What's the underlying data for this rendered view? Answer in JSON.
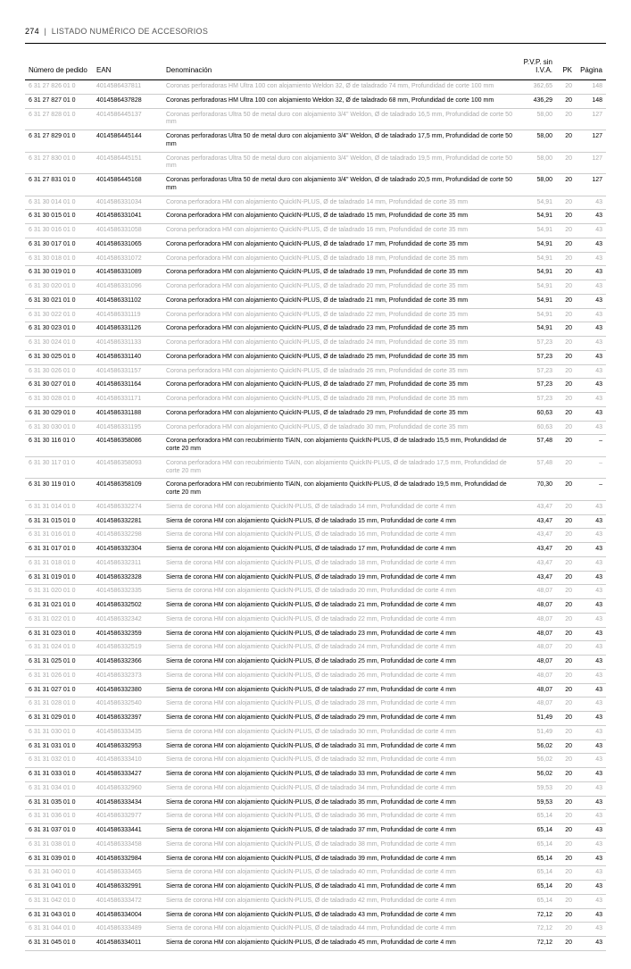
{
  "header": {
    "page_num": "274",
    "title": "LISTADO NUMÉRICO DE ACCESORIOS"
  },
  "columns": {
    "num": "Número de pedido",
    "ean": "EAN",
    "desc": "Denominación",
    "pvp": "P.V.P. sin I.V.A.",
    "pk": "PK",
    "pg": "Página"
  },
  "rows": [
    {
      "grey": 1,
      "num": "6 31 27 826 01 0",
      "ean": "4014586437811",
      "desc": "Coronas perforadoras HM Ultra 100 con alojamiento Weldon 32, Ø de taladrado 74 mm, Profundidad de corte 100 mm",
      "pvp": "362,65",
      "pk": "20",
      "pg": "148"
    },
    {
      "grey": 0,
      "num": "6 31 27 827 01 0",
      "ean": "4014586437828",
      "desc": "Coronas perforadoras HM Ultra 100 con alojamiento Weldon 32, Ø de taladrado 68 mm, Profundidad de corte 100 mm",
      "pvp": "436,29",
      "pk": "20",
      "pg": "148"
    },
    {
      "grey": 1,
      "num": "6 31 27 828 01 0",
      "ean": "4014586445137",
      "desc": "Coronas perforadoras Ultra 50 de metal duro con alojamiento 3/4\" Weldon, Ø de taladrado 16,5 mm, Profundidad de corte 50 mm",
      "pvp": "58,00",
      "pk": "20",
      "pg": "127"
    },
    {
      "grey": 0,
      "num": "6 31 27 829 01 0",
      "ean": "4014586445144",
      "desc": "Coronas perforadoras Ultra 50 de metal duro con alojamiento 3/4\" Weldon, Ø de taladrado 17,5 mm, Profundidad de corte 50 mm",
      "pvp": "58,00",
      "pk": "20",
      "pg": "127"
    },
    {
      "grey": 1,
      "num": "6 31 27 830 01 0",
      "ean": "4014586445151",
      "desc": "Coronas perforadoras Ultra 50 de metal duro con alojamiento 3/4\" Weldon, Ø de taladrado 19,5 mm, Profundidad de corte 50 mm",
      "pvp": "58,00",
      "pk": "20",
      "pg": "127"
    },
    {
      "grey": 0,
      "num": "6 31 27 831 01 0",
      "ean": "4014586445168",
      "desc": "Coronas perforadoras Ultra 50 de metal duro con alojamiento 3/4\" Weldon, Ø de taladrado 20,5 mm, Profundidad de corte 50 mm",
      "pvp": "58,00",
      "pk": "20",
      "pg": "127"
    },
    {
      "grey": 1,
      "num": "6 31 30 014 01 0",
      "ean": "4014586331034",
      "desc": "Corona perforadora HM con alojamiento QuickIN-PLUS, Ø de taladrado 14 mm, Profundidad de corte 35 mm",
      "pvp": "54,91",
      "pk": "20",
      "pg": "43"
    },
    {
      "grey": 0,
      "num": "6 31 30 015 01 0",
      "ean": "4014586331041",
      "desc": "Corona perforadora HM con alojamiento QuickIN-PLUS, Ø de taladrado 15 mm, Profundidad de corte 35 mm",
      "pvp": "54,91",
      "pk": "20",
      "pg": "43"
    },
    {
      "grey": 1,
      "num": "6 31 30 016 01 0",
      "ean": "4014586331058",
      "desc": "Corona perforadora HM con alojamiento QuickIN-PLUS, Ø de taladrado 16 mm, Profundidad de corte 35 mm",
      "pvp": "54,91",
      "pk": "20",
      "pg": "43"
    },
    {
      "grey": 0,
      "num": "6 31 30 017 01 0",
      "ean": "4014586331065",
      "desc": "Corona perforadora HM con alojamiento QuickIN-PLUS, Ø de taladrado 17 mm, Profundidad de corte 35 mm",
      "pvp": "54,91",
      "pk": "20",
      "pg": "43"
    },
    {
      "grey": 1,
      "num": "6 31 30 018 01 0",
      "ean": "4014586331072",
      "desc": "Corona perforadora HM con alojamiento QuickIN-PLUS, Ø de taladrado 18 mm, Profundidad de corte 35 mm",
      "pvp": "54,91",
      "pk": "20",
      "pg": "43"
    },
    {
      "grey": 0,
      "num": "6 31 30 019 01 0",
      "ean": "4014586331089",
      "desc": "Corona perforadora HM con alojamiento QuickIN-PLUS, Ø de taladrado 19 mm, Profundidad de corte 35 mm",
      "pvp": "54,91",
      "pk": "20",
      "pg": "43"
    },
    {
      "grey": 1,
      "num": "6 31 30 020 01 0",
      "ean": "4014586331096",
      "desc": "Corona perforadora HM con alojamiento QuickIN-PLUS, Ø de taladrado 20 mm, Profundidad de corte 35 mm",
      "pvp": "54,91",
      "pk": "20",
      "pg": "43"
    },
    {
      "grey": 0,
      "num": "6 31 30 021 01 0",
      "ean": "4014586331102",
      "desc": "Corona perforadora HM con alojamiento QuickIN-PLUS, Ø de taladrado 21 mm, Profundidad de corte 35 mm",
      "pvp": "54,91",
      "pk": "20",
      "pg": "43"
    },
    {
      "grey": 1,
      "num": "6 31 30 022 01 0",
      "ean": "4014586331119",
      "desc": "Corona perforadora HM con alojamiento QuickIN-PLUS, Ø de taladrado 22 mm, Profundidad de corte 35 mm",
      "pvp": "54,91",
      "pk": "20",
      "pg": "43"
    },
    {
      "grey": 0,
      "num": "6 31 30 023 01 0",
      "ean": "4014586331126",
      "desc": "Corona perforadora HM con alojamiento QuickIN-PLUS, Ø de taladrado 23 mm, Profundidad de corte 35 mm",
      "pvp": "54,91",
      "pk": "20",
      "pg": "43"
    },
    {
      "grey": 1,
      "num": "6 31 30 024 01 0",
      "ean": "4014586331133",
      "desc": "Corona perforadora HM con alojamiento QuickIN-PLUS, Ø de taladrado 24 mm, Profundidad de corte 35 mm",
      "pvp": "57,23",
      "pk": "20",
      "pg": "43"
    },
    {
      "grey": 0,
      "num": "6 31 30 025 01 0",
      "ean": "4014586331140",
      "desc": "Corona perforadora HM con alojamiento QuickIN-PLUS, Ø de taladrado 25 mm, Profundidad de corte 35 mm",
      "pvp": "57,23",
      "pk": "20",
      "pg": "43"
    },
    {
      "grey": 1,
      "num": "6 31 30 026 01 0",
      "ean": "4014586331157",
      "desc": "Corona perforadora HM con alojamiento QuickIN-PLUS, Ø de taladrado 26 mm, Profundidad de corte 35 mm",
      "pvp": "57,23",
      "pk": "20",
      "pg": "43"
    },
    {
      "grey": 0,
      "num": "6 31 30 027 01 0",
      "ean": "4014586331164",
      "desc": "Corona perforadora HM con alojamiento QuickIN-PLUS, Ø de taladrado 27 mm, Profundidad de corte 35 mm",
      "pvp": "57,23",
      "pk": "20",
      "pg": "43"
    },
    {
      "grey": 1,
      "num": "6 31 30 028 01 0",
      "ean": "4014586331171",
      "desc": "Corona perforadora HM con alojamiento QuickIN-PLUS, Ø de taladrado 28 mm, Profundidad de corte 35 mm",
      "pvp": "57,23",
      "pk": "20",
      "pg": "43"
    },
    {
      "grey": 0,
      "num": "6 31 30 029 01 0",
      "ean": "4014586331188",
      "desc": "Corona perforadora HM con alojamiento QuickIN-PLUS, Ø de taladrado 29 mm, Profundidad de corte 35 mm",
      "pvp": "60,63",
      "pk": "20",
      "pg": "43"
    },
    {
      "grey": 1,
      "num": "6 31 30 030 01 0",
      "ean": "4014586331195",
      "desc": "Corona perforadora HM con alojamiento QuickIN-PLUS, Ø de taladrado 30 mm, Profundidad de corte 35 mm",
      "pvp": "60,63",
      "pk": "20",
      "pg": "43"
    },
    {
      "grey": 0,
      "num": "6 31 30 116 01 0",
      "ean": "4014586358086",
      "desc": "Corona perforadora HM con recubrimiento TiAIN, con alojamiento QuickIN-PLUS, Ø de taladrado 15,5 mm, Profundidad de corte 20 mm",
      "pvp": "57,48",
      "pk": "20",
      "pg": "–"
    },
    {
      "grey": 1,
      "num": "6 31 30 117 01 0",
      "ean": "4014586358093",
      "desc": "Corona perforadora HM con recubrimiento TiAIN, con alojamiento QuickIN-PLUS, Ø de taladrado 17,5 mm, Profundidad de corte 20 mm",
      "pvp": "57,48",
      "pk": "20",
      "pg": "–"
    },
    {
      "grey": 0,
      "num": "6 31 30 119 01 0",
      "ean": "4014586358109",
      "desc": "Corona perforadora HM con recubrimiento TiAIN, con alojamiento QuickIN-PLUS, Ø de taladrado 19,5 mm, Profundidad de corte 20 mm",
      "pvp": "70,30",
      "pk": "20",
      "pg": "–"
    },
    {
      "grey": 1,
      "num": "6 31 31 014 01 0",
      "ean": "4014586332274",
      "desc": "Sierra de corona HM con alojamiento QuickIN-PLUS, Ø de taladrado 14 mm, Profundidad de corte 4 mm",
      "pvp": "43,47",
      "pk": "20",
      "pg": "43"
    },
    {
      "grey": 0,
      "num": "6 31 31 015 01 0",
      "ean": "4014586332281",
      "desc": "Sierra de corona HM con alojamiento QuickIN-PLUS, Ø de taladrado 15 mm, Profundidad de corte 4 mm",
      "pvp": "43,47",
      "pk": "20",
      "pg": "43"
    },
    {
      "grey": 1,
      "num": "6 31 31 016 01 0",
      "ean": "4014586332298",
      "desc": "Sierra de corona HM con alojamiento QuickIN-PLUS, Ø de taladrado 16 mm, Profundidad de corte 4 mm",
      "pvp": "43,47",
      "pk": "20",
      "pg": "43"
    },
    {
      "grey": 0,
      "num": "6 31 31 017 01 0",
      "ean": "4014586332304",
      "desc": "Sierra de corona HM con alojamiento QuickIN-PLUS, Ø de taladrado 17 mm, Profundidad de corte 4 mm",
      "pvp": "43,47",
      "pk": "20",
      "pg": "43"
    },
    {
      "grey": 1,
      "num": "6 31 31 018 01 0",
      "ean": "4014586332311",
      "desc": "Sierra de corona HM con alojamiento QuickIN-PLUS, Ø de taladrado 18 mm, Profundidad de corte 4 mm",
      "pvp": "43,47",
      "pk": "20",
      "pg": "43"
    },
    {
      "grey": 0,
      "num": "6 31 31 019 01 0",
      "ean": "4014586332328",
      "desc": "Sierra de corona HM con alojamiento QuickIN-PLUS, Ø de taladrado 19 mm, Profundidad de corte 4 mm",
      "pvp": "43,47",
      "pk": "20",
      "pg": "43"
    },
    {
      "grey": 1,
      "num": "6 31 31 020 01 0",
      "ean": "4014586332335",
      "desc": "Sierra de corona HM con alojamiento QuickIN-PLUS, Ø de taladrado 20 mm, Profundidad de corte 4 mm",
      "pvp": "48,07",
      "pk": "20",
      "pg": "43"
    },
    {
      "grey": 0,
      "num": "6 31 31 021 01 0",
      "ean": "4014586332502",
      "desc": "Sierra de corona HM con alojamiento QuickIN-PLUS, Ø de taladrado 21 mm, Profundidad de corte 4 mm",
      "pvp": "48,07",
      "pk": "20",
      "pg": "43"
    },
    {
      "grey": 1,
      "num": "6 31 31 022 01 0",
      "ean": "4014586332342",
      "desc": "Sierra de corona HM con alojamiento QuickIN-PLUS, Ø de taladrado 22 mm, Profundidad de corte 4 mm",
      "pvp": "48,07",
      "pk": "20",
      "pg": "43"
    },
    {
      "grey": 0,
      "num": "6 31 31 023 01 0",
      "ean": "4014586332359",
      "desc": "Sierra de corona HM con alojamiento QuickIN-PLUS, Ø de taladrado 23 mm, Profundidad de corte 4 mm",
      "pvp": "48,07",
      "pk": "20",
      "pg": "43"
    },
    {
      "grey": 1,
      "num": "6 31 31 024 01 0",
      "ean": "4014586332519",
      "desc": "Sierra de corona HM con alojamiento QuickIN-PLUS, Ø de taladrado 24 mm, Profundidad de corte 4 mm",
      "pvp": "48,07",
      "pk": "20",
      "pg": "43"
    },
    {
      "grey": 0,
      "num": "6 31 31 025 01 0",
      "ean": "4014586332366",
      "desc": "Sierra de corona HM con alojamiento QuickIN-PLUS, Ø de taladrado 25 mm, Profundidad de corte 4 mm",
      "pvp": "48,07",
      "pk": "20",
      "pg": "43"
    },
    {
      "grey": 1,
      "num": "6 31 31 026 01 0",
      "ean": "4014586332373",
      "desc": "Sierra de corona HM con alojamiento QuickIN-PLUS, Ø de taladrado 26 mm, Profundidad de corte 4 mm",
      "pvp": "48,07",
      "pk": "20",
      "pg": "43"
    },
    {
      "grey": 0,
      "num": "6 31 31 027 01 0",
      "ean": "4014586332380",
      "desc": "Sierra de corona HM con alojamiento QuickIN-PLUS, Ø de taladrado 27 mm, Profundidad de corte 4 mm",
      "pvp": "48,07",
      "pk": "20",
      "pg": "43"
    },
    {
      "grey": 1,
      "num": "6 31 31 028 01 0",
      "ean": "4014586332540",
      "desc": "Sierra de corona HM con alojamiento QuickIN-PLUS, Ø de taladrado 28 mm, Profundidad de corte 4 mm",
      "pvp": "48,07",
      "pk": "20",
      "pg": "43"
    },
    {
      "grey": 0,
      "num": "6 31 31 029 01 0",
      "ean": "4014586332397",
      "desc": "Sierra de corona HM con alojamiento QuickIN-PLUS, Ø de taladrado 29 mm, Profundidad de corte 4 mm",
      "pvp": "51,49",
      "pk": "20",
      "pg": "43"
    },
    {
      "grey": 1,
      "num": "6 31 31 030 01 0",
      "ean": "4014586333435",
      "desc": "Sierra de corona HM con alojamiento QuickIN-PLUS, Ø de taladrado 30 mm, Profundidad de corte 4 mm",
      "pvp": "51,49",
      "pk": "20",
      "pg": "43"
    },
    {
      "grey": 0,
      "num": "6 31 31 031 01 0",
      "ean": "4014586332953",
      "desc": "Sierra de corona HM con alojamiento QuickIN-PLUS, Ø de taladrado 31 mm, Profundidad de corte 4 mm",
      "pvp": "56,02",
      "pk": "20",
      "pg": "43"
    },
    {
      "grey": 1,
      "num": "6 31 31 032 01 0",
      "ean": "4014586333410",
      "desc": "Sierra de corona HM con alojamiento QuickIN-PLUS, Ø de taladrado 32 mm, Profundidad de corte 4 mm",
      "pvp": "56,02",
      "pk": "20",
      "pg": "43"
    },
    {
      "grey": 0,
      "num": "6 31 31 033 01 0",
      "ean": "4014586333427",
      "desc": "Sierra de corona HM con alojamiento QuickIN-PLUS, Ø de taladrado 33 mm, Profundidad de corte 4 mm",
      "pvp": "56,02",
      "pk": "20",
      "pg": "43"
    },
    {
      "grey": 1,
      "num": "6 31 31 034 01 0",
      "ean": "4014586332960",
      "desc": "Sierra de corona HM con alojamiento QuickIN-PLUS, Ø de taladrado 34 mm, Profundidad de corte 4 mm",
      "pvp": "59,53",
      "pk": "20",
      "pg": "43"
    },
    {
      "grey": 0,
      "num": "6 31 31 035 01 0",
      "ean": "4014586333434",
      "desc": "Sierra de corona HM con alojamiento QuickIN-PLUS, Ø de taladrado 35 mm, Profundidad de corte 4 mm",
      "pvp": "59,53",
      "pk": "20",
      "pg": "43"
    },
    {
      "grey": 1,
      "num": "6 31 31 036 01 0",
      "ean": "4014586332977",
      "desc": "Sierra de corona HM con alojamiento QuickIN-PLUS, Ø de taladrado 36 mm, Profundidad de corte 4 mm",
      "pvp": "65,14",
      "pk": "20",
      "pg": "43"
    },
    {
      "grey": 0,
      "num": "6 31 31 037 01 0",
      "ean": "4014586333441",
      "desc": "Sierra de corona HM con alojamiento QuickIN-PLUS, Ø de taladrado 37 mm, Profundidad de corte 4 mm",
      "pvp": "65,14",
      "pk": "20",
      "pg": "43"
    },
    {
      "grey": 1,
      "num": "6 31 31 038 01 0",
      "ean": "4014586333458",
      "desc": "Sierra de corona HM con alojamiento QuickIN-PLUS, Ø de taladrado 38 mm, Profundidad de corte 4 mm",
      "pvp": "65,14",
      "pk": "20",
      "pg": "43"
    },
    {
      "grey": 0,
      "num": "6 31 31 039 01 0",
      "ean": "4014586332984",
      "desc": "Sierra de corona HM con alojamiento QuickIN-PLUS, Ø de taladrado 39 mm, Profundidad de corte 4 mm",
      "pvp": "65,14",
      "pk": "20",
      "pg": "43"
    },
    {
      "grey": 1,
      "num": "6 31 31 040 01 0",
      "ean": "4014586333465",
      "desc": "Sierra de corona HM con alojamiento QuickIN-PLUS, Ø de taladrado 40 mm, Profundidad de corte 4 mm",
      "pvp": "65,14",
      "pk": "20",
      "pg": "43"
    },
    {
      "grey": 0,
      "num": "6 31 31 041 01 0",
      "ean": "4014586332991",
      "desc": "Sierra de corona HM con alojamiento QuickIN-PLUS, Ø de taladrado 41 mm, Profundidad de corte 4 mm",
      "pvp": "65,14",
      "pk": "20",
      "pg": "43"
    },
    {
      "grey": 1,
      "num": "6 31 31 042 01 0",
      "ean": "4014586333472",
      "desc": "Sierra de corona HM con alojamiento QuickIN-PLUS, Ø de taladrado 42 mm, Profundidad de corte 4 mm",
      "pvp": "65,14",
      "pk": "20",
      "pg": "43"
    },
    {
      "grey": 0,
      "num": "6 31 31 043 01 0",
      "ean": "4014586334004",
      "desc": "Sierra de corona HM con alojamiento QuickIN-PLUS, Ø de taladrado 43 mm, Profundidad de corte 4 mm",
      "pvp": "72,12",
      "pk": "20",
      "pg": "43"
    },
    {
      "grey": 1,
      "num": "6 31 31 044 01 0",
      "ean": "4014586333489",
      "desc": "Sierra de corona HM con alojamiento QuickIN-PLUS, Ø de taladrado 44 mm, Profundidad de corte 4 mm",
      "pvp": "72,12",
      "pk": "20",
      "pg": "43"
    },
    {
      "grey": 0,
      "num": "6 31 31 045 01 0",
      "ean": "4014586334011",
      "desc": "Sierra de corona HM con alojamiento QuickIN-PLUS, Ø de taladrado 45 mm, Profundidad de corte 4 mm",
      "pvp": "72,12",
      "pk": "20",
      "pg": "43"
    }
  ]
}
